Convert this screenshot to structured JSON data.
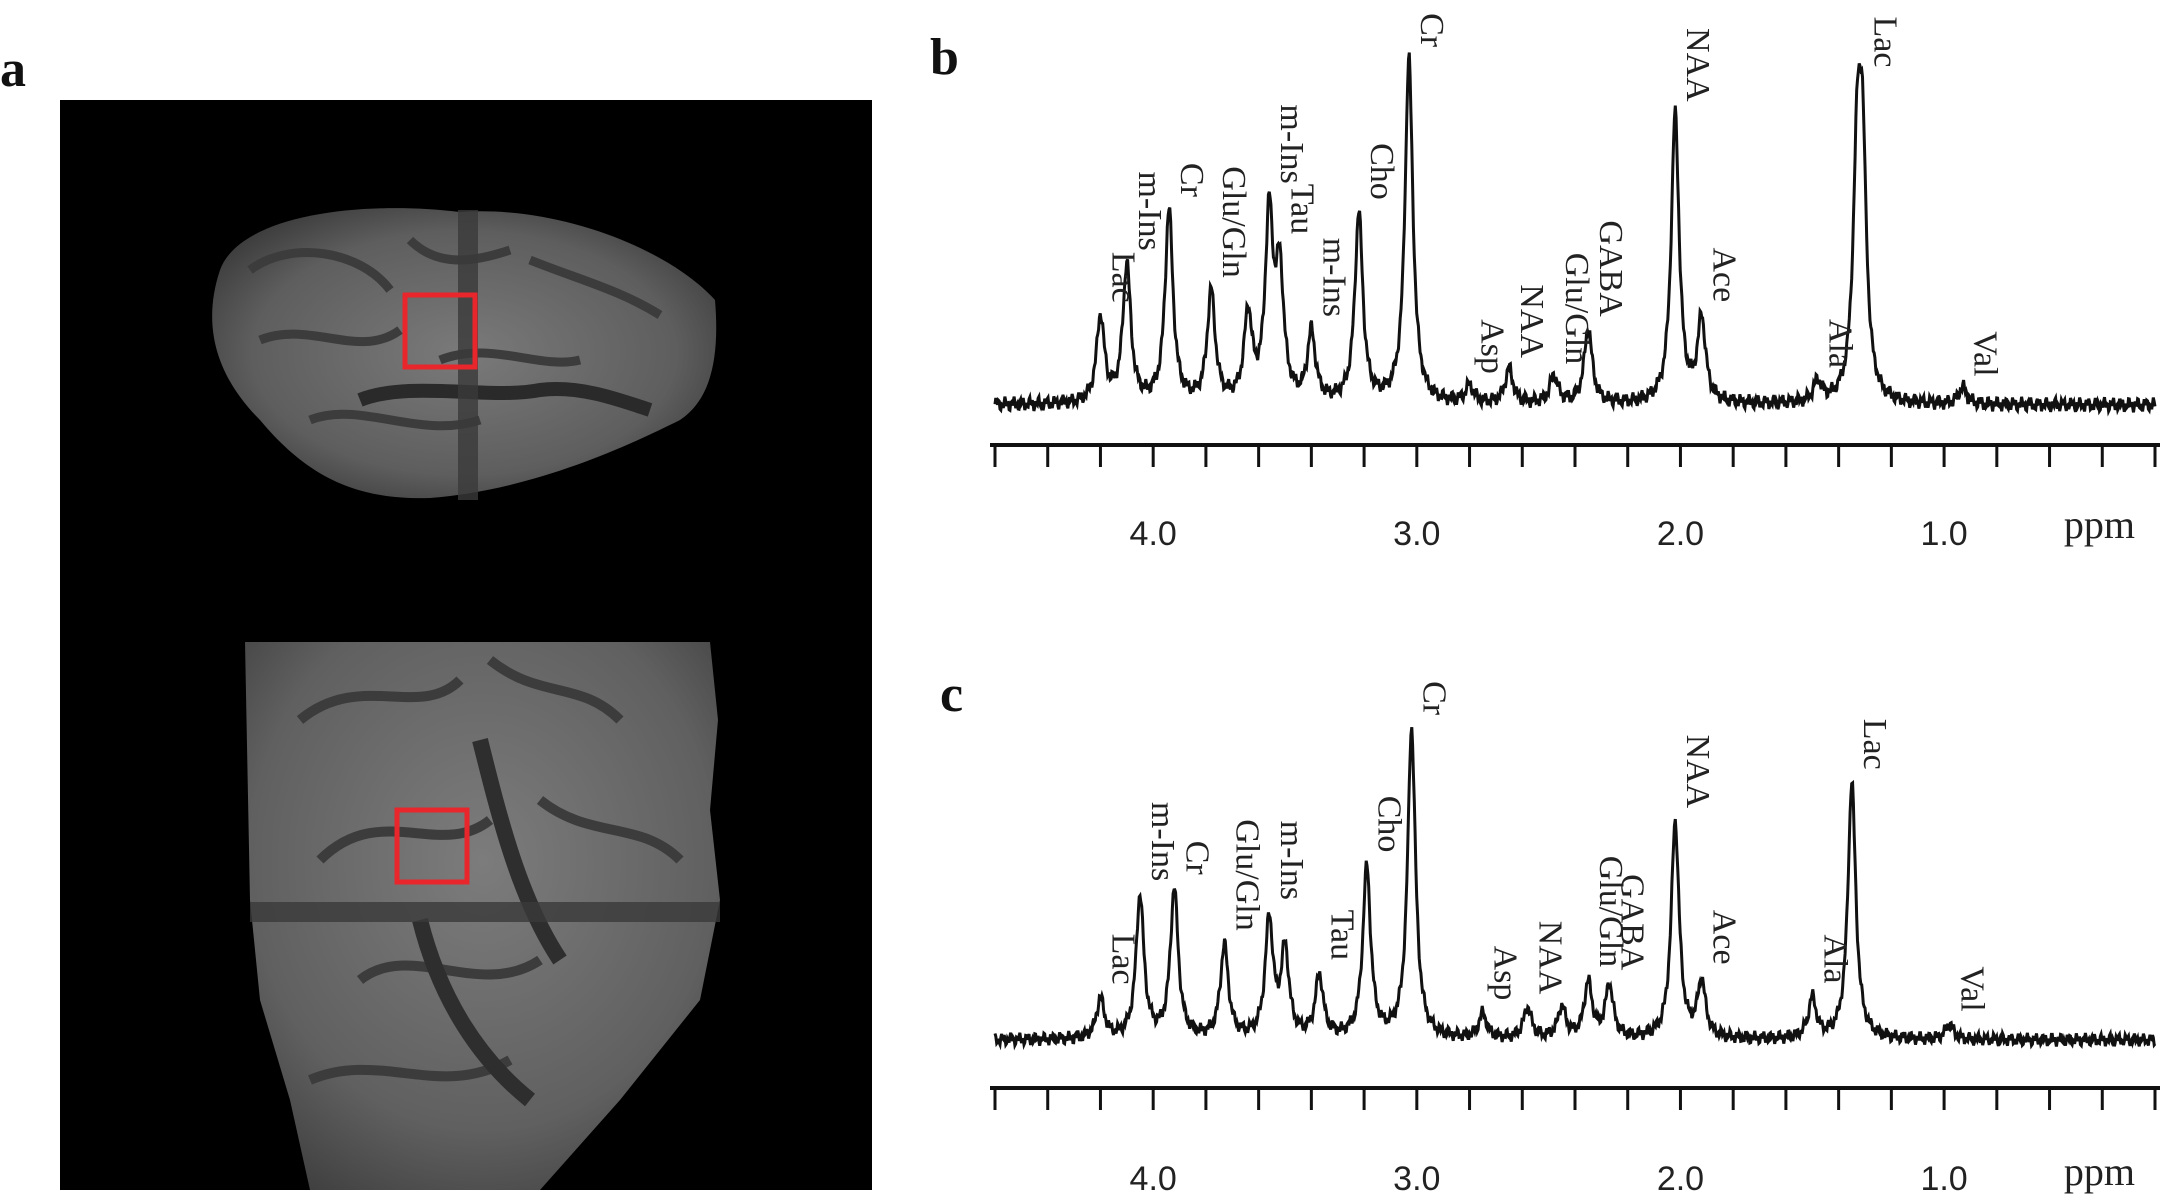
{
  "panels": {
    "a": {
      "letter": "a"
    },
    "b": {
      "letter": "b"
    },
    "c": {
      "letter": "c"
    }
  },
  "colors": {
    "roi_box": "#e8262b",
    "spectrum": "#111111",
    "background_mri": "#000000"
  },
  "chart_data": [
    {
      "type": "line",
      "panel": "b",
      "x_unit_label": "ppm",
      "x_ticks": [
        {
          "value": 4.0,
          "label": "4.0"
        },
        {
          "value": 3.0,
          "label": "3.0"
        },
        {
          "value": 2.0,
          "label": "2.0"
        },
        {
          "value": 1.0,
          "label": "1.0"
        }
      ],
      "x_range": [
        4.6,
        0.2
      ],
      "x_reversed": true,
      "minor_tick_step": 0.2,
      "peaks": [
        {
          "ppm": 4.2,
          "height": 0.25,
          "label": "Lac"
        },
        {
          "ppm": 4.1,
          "height": 0.4,
          "label": "m-Ins"
        },
        {
          "ppm": 3.94,
          "height": 0.56,
          "label": "Cr"
        },
        {
          "ppm": 3.78,
          "height": 0.32,
          "label": "Glu/Gln"
        },
        {
          "ppm": 3.64,
          "height": 0.25,
          "label": ""
        },
        {
          "ppm": 3.56,
          "height": 0.53,
          "label": "m-Ins"
        },
        {
          "ppm": 3.52,
          "height": 0.36,
          "label": "Tau"
        },
        {
          "ppm": 3.4,
          "height": 0.2,
          "label": "m-Ins"
        },
        {
          "ppm": 3.22,
          "height": 0.55,
          "label": "Cho"
        },
        {
          "ppm": 3.03,
          "height": 1.0,
          "label": "Cr"
        },
        {
          "ppm": 2.8,
          "height": 0.05,
          "label": "Asp"
        },
        {
          "ppm": 2.65,
          "height": 0.1,
          "label": "NAA"
        },
        {
          "ppm": 2.48,
          "height": 0.08,
          "label": "Glu/Gln"
        },
        {
          "ppm": 2.35,
          "height": 0.22,
          "label": "GABA"
        },
        {
          "ppm": 2.02,
          "height": 0.84,
          "label": "NAA"
        },
        {
          "ppm": 1.92,
          "height": 0.24,
          "label": "Ace"
        },
        {
          "ppm": 1.48,
          "height": 0.06,
          "label": "Ala"
        },
        {
          "ppm": 1.33,
          "height": 0.62,
          "label": ""
        },
        {
          "ppm": 1.31,
          "height": 0.67,
          "label": "Lac"
        },
        {
          "ppm": 0.93,
          "height": 0.05,
          "label": "Val"
        }
      ]
    },
    {
      "type": "line",
      "panel": "c",
      "x_unit_label": "ppm",
      "x_ticks": [
        {
          "value": 4.0,
          "label": "4.0"
        },
        {
          "value": 3.0,
          "label": "3.0"
        },
        {
          "value": 2.0,
          "label": "2.0"
        },
        {
          "value": 1.0,
          "label": "1.0"
        }
      ],
      "x_range": [
        4.6,
        0.2
      ],
      "x_reversed": true,
      "minor_tick_step": 0.2,
      "peaks": [
        {
          "ppm": 4.2,
          "height": 0.13,
          "label": "Lac"
        },
        {
          "ppm": 4.05,
          "height": 0.46,
          "label": "m-Ins"
        },
        {
          "ppm": 3.92,
          "height": 0.48,
          "label": "Cr"
        },
        {
          "ppm": 3.73,
          "height": 0.3,
          "label": "Glu/Gln"
        },
        {
          "ppm": 3.56,
          "height": 0.38,
          "label": "m-Ins"
        },
        {
          "ppm": 3.5,
          "height": 0.28,
          "label": ""
        },
        {
          "ppm": 3.37,
          "height": 0.2,
          "label": "Tau"
        },
        {
          "ppm": 3.19,
          "height": 0.55,
          "label": "Cho"
        },
        {
          "ppm": 3.02,
          "height": 1.0,
          "label": "Cr"
        },
        {
          "ppm": 2.75,
          "height": 0.08,
          "label": "Asp"
        },
        {
          "ppm": 2.58,
          "height": 0.1,
          "label": "NAA"
        },
        {
          "ppm": 2.45,
          "height": 0.1,
          "label": ""
        },
        {
          "ppm": 2.35,
          "height": 0.18,
          "label": "Glu/Gln"
        },
        {
          "ppm": 2.27,
          "height": 0.17,
          "label": "GABA"
        },
        {
          "ppm": 2.02,
          "height": 0.7,
          "label": "NAA"
        },
        {
          "ppm": 1.92,
          "height": 0.18,
          "label": "Ace"
        },
        {
          "ppm": 1.5,
          "height": 0.13,
          "label": "Ala"
        },
        {
          "ppm": 1.35,
          "height": 0.83,
          "label": "Lac"
        },
        {
          "ppm": 0.98,
          "height": 0.05,
          "label": "Val"
        }
      ]
    }
  ]
}
